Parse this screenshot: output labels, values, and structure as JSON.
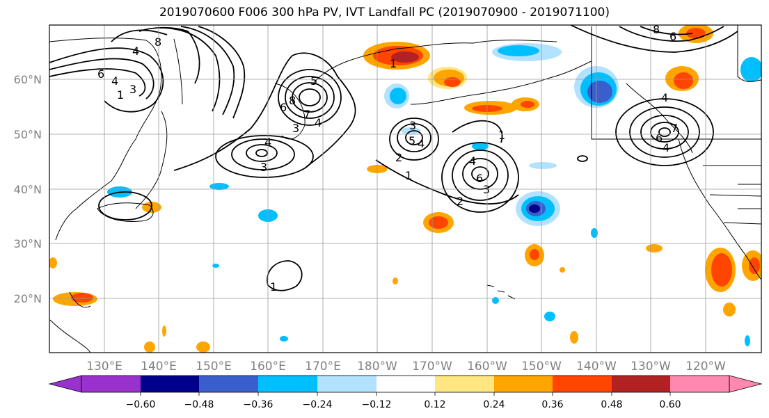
{
  "title": "2019070600 F006 300 hPa PV, IVT Landfall PC (2019070900 - 2019071100)",
  "lat_labels": [
    "60°N",
    "50°N",
    "40°N",
    "30°N",
    "20°N"
  ],
  "lon_labels": [
    "130°E",
    "140°E",
    "150°E",
    "160°E",
    "170°E",
    "180°W",
    "170°W",
    "160°W",
    "150°W",
    "140°W",
    "130°W",
    "120°W"
  ],
  "colorbar": {
    "colors": [
      "#9932cc",
      "#00008b",
      "#3a5fcd",
      "#00bfff",
      "#b2e2ff",
      "#ffffff",
      "#ffe680",
      "#ffa500",
      "#ff4500",
      "#b22222",
      "#ff88b0"
    ],
    "tick_labels": [
      "−0.60",
      "−0.48",
      "−0.36",
      "−0.24",
      "−0.12",
      "0.12",
      "0.24",
      "0.36",
      "0.48",
      "0.60"
    ]
  },
  "contour_labels": [
    "4",
    "8",
    "6",
    "4",
    "3",
    "1",
    "5",
    "7",
    "8",
    "6",
    "3",
    "4",
    "4",
    "3",
    "5",
    "4",
    "3",
    "2",
    "1",
    "4",
    "6",
    "3",
    "2",
    "1",
    "1",
    "8",
    "6",
    "4",
    "6",
    "4",
    "7",
    "1"
  ]
}
